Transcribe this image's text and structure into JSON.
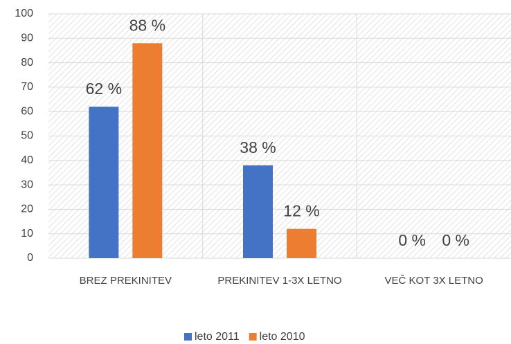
{
  "chart_data": {
    "type": "bar",
    "categories": [
      "BREZ PREKINITEV",
      "PREKINITEV 1-3X LETNO",
      "VEČ KOT 3X LETNO"
    ],
    "series": [
      {
        "name": "leto 2011",
        "color": "#4472c4",
        "values": [
          62,
          38,
          0
        ],
        "value_labels": [
          "62 %",
          "38 %",
          "0 %"
        ]
      },
      {
        "name": "leto 2010",
        "color": "#ed7d31",
        "values": [
          88,
          12,
          0
        ],
        "value_labels": [
          "88 %",
          "12 %",
          "0 %"
        ]
      }
    ],
    "ylim": [
      0,
      100
    ],
    "yticks": [
      0,
      10,
      20,
      30,
      40,
      50,
      60,
      70,
      80,
      90,
      100
    ],
    "grid": true,
    "legend": "bottom"
  }
}
